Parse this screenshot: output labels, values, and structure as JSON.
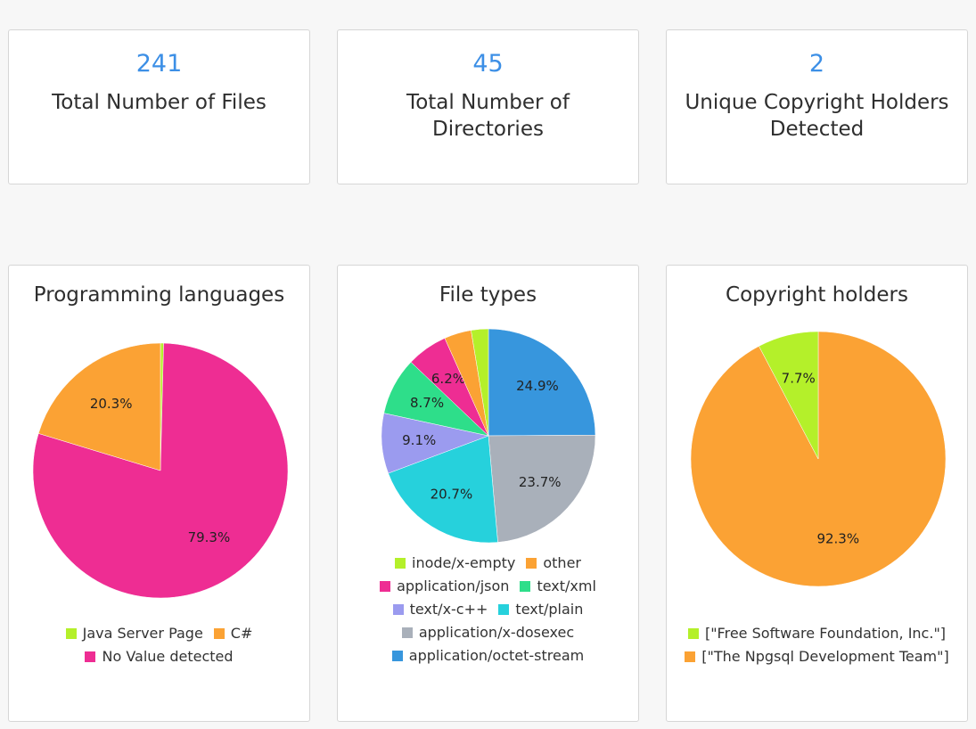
{
  "stats": [
    {
      "value": "241",
      "label": "Total Number of Files"
    },
    {
      "value": "45",
      "label": "Total Number of Directories"
    },
    {
      "value": "2",
      "label": "Unique Copyright Holders Detected"
    }
  ],
  "chart_data": [
    {
      "type": "pie",
      "title": "Programming languages",
      "start_angle_deg": 0,
      "slices": [
        {
          "label": "Java Server Page",
          "value": 0.4,
          "color": "#b4f02a",
          "display": ""
        },
        {
          "label": "No Value detected",
          "value": 79.3,
          "color": "#ee2d93",
          "display": "79.3%"
        },
        {
          "label": "C#",
          "value": 20.3,
          "color": "#fba234",
          "display": "20.3%"
        }
      ],
      "legend": [
        {
          "label": "Java Server Page",
          "color": "#b4f02a"
        },
        {
          "label": "C#",
          "color": "#fba234"
        },
        {
          "label": "No Value detected",
          "color": "#ee2d93"
        }
      ]
    },
    {
      "type": "pie",
      "title": "File types",
      "start_angle_deg": 0,
      "slices": [
        {
          "label": "application/octet-stream",
          "value": 24.9,
          "color": "#3796dd",
          "display": "24.9%"
        },
        {
          "label": "application/x-dosexec",
          "value": 23.7,
          "color": "#a9b0ba",
          "display": "23.7%"
        },
        {
          "label": "text/plain",
          "value": 20.7,
          "color": "#26d1dc",
          "display": "20.7%"
        },
        {
          "label": "text/x-c++",
          "value": 9.1,
          "color": "#9b9bef",
          "display": "9.1%"
        },
        {
          "label": "text/xml",
          "value": 8.7,
          "color": "#2ede8a",
          "display": "8.7%"
        },
        {
          "label": "application/json",
          "value": 6.2,
          "color": "#ee2d93",
          "display": "6.2%"
        },
        {
          "label": "other",
          "value": 4.1,
          "color": "#fba234",
          "display": ""
        },
        {
          "label": "inode/x-empty",
          "value": 2.6,
          "color": "#b4f02a",
          "display": ""
        }
      ],
      "legend": [
        {
          "label": "inode/x-empty",
          "color": "#b4f02a"
        },
        {
          "label": "other",
          "color": "#fba234"
        },
        {
          "label": "application/json",
          "color": "#ee2d93"
        },
        {
          "label": "text/xml",
          "color": "#2ede8a"
        },
        {
          "label": "text/x-c++",
          "color": "#9b9bef"
        },
        {
          "label": "text/plain",
          "color": "#26d1dc"
        },
        {
          "label": "application/x-dosexec",
          "color": "#a9b0ba"
        },
        {
          "label": "application/octet-stream",
          "color": "#3796dd"
        }
      ]
    },
    {
      "type": "pie",
      "title": "Copyright holders",
      "start_angle_deg": 0,
      "slices": [
        {
          "label": "[\"The Npgsql Development Team\"]",
          "value": 92.3,
          "color": "#fba234",
          "display": "92.3%"
        },
        {
          "label": "[\"Free Software Foundation, Inc.\"]",
          "value": 7.7,
          "color": "#b4f02a",
          "display": "7.7%"
        }
      ],
      "legend": [
        {
          "label": "[\"Free Software Foundation, Inc.\"]",
          "color": "#b4f02a"
        },
        {
          "label": "[\"The Npgsql Development Team\"]",
          "color": "#fba234"
        }
      ]
    }
  ]
}
